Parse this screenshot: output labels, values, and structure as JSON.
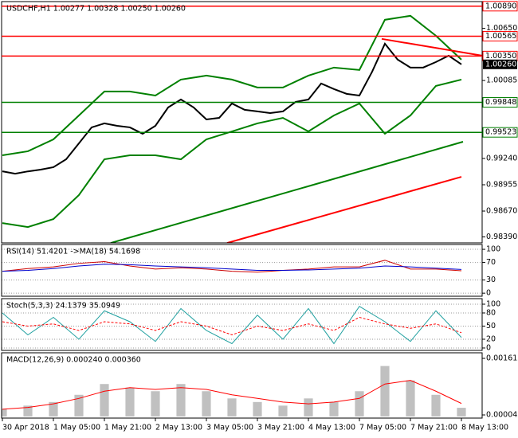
{
  "chart_data": [
    {
      "type": "line",
      "title": "USDCHF,H1  1.00277 1.00328 1.00250 1.00260",
      "xlim": [
        -0.25,
        150.5
      ],
      "ylim": [
        0.98325,
        1.0094
      ],
      "grid": false,
      "yticks": [
        {
          "value": 1.0065,
          "label": "1.00650"
        },
        1.00085,
        {
          "value": 0.9924,
          "label": "0.99240"
        },
        0.98955,
        {
          "value": 0.9867,
          "label": "0.98670"
        },
        {
          "value": 0.9839,
          "label": "0.98390"
        }
      ],
      "series": [
        {
          "color": "#000000",
          "x": [
            0,
            4,
            8,
            12,
            16,
            20,
            24,
            28,
            32,
            36,
            40,
            44,
            48,
            52,
            56,
            60,
            64,
            68,
            72,
            76,
            80,
            84,
            88,
            92,
            96,
            100,
            104,
            108,
            112,
            116,
            120,
            124,
            128,
            132,
            136,
            140,
            144
          ],
          "values": [
            0.99101,
            0.99075,
            0.991,
            0.99119,
            0.99145,
            0.99231,
            0.99404,
            0.99577,
            0.9962,
            0.99594,
            0.99577,
            0.99508,
            0.99594,
            0.99793,
            0.99879,
            0.99793,
            0.99663,
            0.9968,
            0.99836,
            0.99767,
            0.9975,
            0.99732,
            0.9975,
            0.99853,
            0.99879,
            1.00052,
            0.99992,
            0.9994,
            0.99922,
            1.00181,
            1.00484,
            1.00311,
            1.00225,
            1.00225,
            1.00285,
            1.00354,
            1.0026
          ]
        },
        {
          "color": "#008000",
          "x": [
            0,
            8,
            16,
            24,
            32,
            40,
            48,
            56,
            64,
            72,
            80,
            88,
            96,
            104,
            112,
            120,
            128,
            136,
            144
          ],
          "values": [
            0.99274,
            0.99318,
            0.99447,
            0.99706,
            0.99966,
            0.99966,
            0.99922,
            1.00095,
            1.00138,
            1.00095,
            1.00009,
            1.00009,
            1.00138,
            1.00225,
            1.00199,
            1.00743,
            1.00786,
            1.0057,
            1.00311
          ]
        },
        {
          "color": "#008000",
          "x": [
            0,
            8,
            16,
            24,
            32,
            40,
            48,
            56,
            64,
            72,
            80,
            88,
            96,
            104,
            112,
            120,
            128,
            136,
            144
          ],
          "values": [
            0.9854,
            0.98497,
            0.98583,
            0.98843,
            0.99231,
            0.99274,
            0.99274,
            0.99231,
            0.99447,
            0.99533,
            0.9962,
            0.9968,
            0.99533,
            0.99706,
            0.99836,
            0.99508,
            0.99706,
            1.00026,
            1.00095
          ]
        },
        {
          "color": "#008000",
          "x": [
            34,
            144.5
          ],
          "values": [
            0.98324,
            0.99421
          ]
        },
        {
          "color": "#ff0000",
          "x": [
            70.5,
            144
          ],
          "values": [
            0.98324,
            0.99041
          ]
        },
        {
          "color": "#ff0000",
          "x": [
            119,
            150.5
          ],
          "values": [
            1.00536,
            1.00354
          ]
        }
      ],
      "levels": [
        {
          "value": 1.0089,
          "label": "1.00890",
          "color": "#ff0000"
        },
        {
          "value": 1.00565,
          "label": "1.00565",
          "color": "#ff0000"
        },
        {
          "value": 1.0035,
          "label": "1.00350",
          "color": "#ff0000"
        },
        {
          "value": 0.99848,
          "label": "0.99848",
          "color": "#008000"
        },
        {
          "value": 0.99523,
          "label": "0.99523",
          "color": "#008000"
        }
      ],
      "last": {
        "value": 1.0026,
        "label": "1.00260"
      }
    },
    {
      "type": "line",
      "title": "RSI(14) 51.4201  ->MA(18) 54.1698",
      "xlim": [
        -0.25,
        150.5
      ],
      "ylim": [
        -7,
        111
      ],
      "grid": true,
      "yticks": [
        0,
        30,
        70,
        100
      ],
      "x": [
        0,
        8,
        16,
        24,
        32,
        40,
        48,
        56,
        64,
        72,
        80,
        88,
        96,
        104,
        112,
        120,
        128,
        136,
        144
      ],
      "series": [
        {
          "color": "#cc0000",
          "values": [
            50,
            56,
            60,
            68,
            72,
            62,
            55,
            58,
            55,
            50,
            48,
            52,
            55,
            60,
            60,
            75,
            55,
            55,
            51
          ]
        },
        {
          "color": "#0000cc",
          "values": [
            50,
            52,
            56,
            62,
            66,
            65,
            62,
            60,
            58,
            55,
            52,
            52,
            53,
            55,
            57,
            62,
            60,
            57,
            54
          ]
        }
      ]
    },
    {
      "type": "line",
      "title": "Stoch(5,3,3) 24.1379 35.0949",
      "xlim": [
        -0.25,
        150.5
      ],
      "ylim": [
        -5.5,
        112.7
      ],
      "grid": true,
      "yticks": [
        0,
        20,
        50,
        80,
        100
      ],
      "x": [
        0,
        8,
        16,
        24,
        32,
        40,
        48,
        56,
        64,
        72,
        80,
        88,
        96,
        104,
        112,
        120,
        128,
        136,
        144
      ],
      "series": [
        {
          "color": "#20a0a0",
          "values": [
            80,
            30,
            70,
            20,
            85,
            60,
            15,
            90,
            40,
            10,
            75,
            20,
            90,
            10,
            95,
            60,
            15,
            85,
            24
          ]
        },
        {
          "color": "#ff0000",
          "dashed": true,
          "values": [
            60,
            50,
            55,
            40,
            60,
            55,
            40,
            60,
            50,
            30,
            50,
            40,
            55,
            40,
            70,
            55,
            45,
            55,
            35
          ]
        }
      ]
    },
    {
      "type": "bar",
      "title": "MACD(12,26,9) 0.000240 0.000360",
      "xlim": [
        -0.25,
        150.5
      ],
      "ylim": [
        -4.6e-05,
        0.001767
      ],
      "grid": false,
      "yticks": [
        4.2e-05,
        0.001612
      ],
      "x": [
        0,
        8,
        16,
        24,
        32,
        40,
        48,
        56,
        64,
        72,
        80,
        88,
        96,
        104,
        112,
        120,
        128,
        136,
        144
      ],
      "xticks": [
        {
          "value": 0,
          "label": "30 Apr 2018"
        },
        {
          "value": 16,
          "label": "1 May 05:00"
        },
        {
          "value": 32,
          "label": "1 May 21:00"
        },
        {
          "value": 48,
          "label": "2 May 13:00"
        },
        {
          "value": 64,
          "label": "3 May 05:00"
        },
        {
          "value": 80,
          "label": "3 May 21:00"
        },
        {
          "value": 96,
          "label": "4 May 13:00"
        },
        {
          "value": 112,
          "label": "7 May 05:00"
        },
        {
          "value": 128,
          "label": "7 May 21:00"
        },
        {
          "value": 144,
          "label": "8 May 13:00"
        }
      ],
      "series": [
        {
          "color": "#c0c0c0",
          "kind": "histogram",
          "values": [
            0.0002,
            0.0003,
            0.0004,
            0.0006,
            0.0009,
            0.0008,
            0.0007,
            0.0009,
            0.0007,
            0.0005,
            0.0004,
            0.0003,
            0.0005,
            0.0004,
            0.0007,
            0.0014,
            0.001,
            0.0006,
            0.00024
          ]
        },
        {
          "color": "#ff0000",
          "values": [
            0.0002,
            0.00025,
            0.00035,
            0.0005,
            0.0007,
            0.0008,
            0.00075,
            0.0008,
            0.00075,
            0.0006,
            0.0005,
            0.0004,
            0.00035,
            0.0004,
            0.0005,
            0.0009,
            0.001,
            0.0007,
            0.00036
          ]
        }
      ]
    }
  ]
}
